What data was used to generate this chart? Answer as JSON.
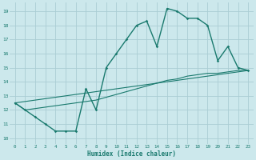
{
  "xlabel": "Humidex (Indice chaleur)",
  "bg_color": "#cce8ec",
  "line_color": "#1a7a6e",
  "grid_color": "#aacdd4",
  "xlim": [
    -0.5,
    23.5
  ],
  "ylim": [
    9.6,
    19.6
  ],
  "xticks": [
    0,
    1,
    2,
    3,
    4,
    5,
    6,
    7,
    8,
    9,
    10,
    11,
    12,
    13,
    14,
    15,
    16,
    17,
    18,
    19,
    20,
    21,
    22,
    23
  ],
  "yticks": [
    10,
    11,
    12,
    13,
    14,
    15,
    16,
    17,
    18,
    19
  ],
  "line1_x": [
    0,
    1,
    2,
    3,
    4,
    5,
    6,
    7,
    8,
    9,
    10,
    11,
    12,
    13,
    14,
    15,
    16,
    17,
    18,
    19,
    20,
    21,
    22,
    23
  ],
  "line1_y": [
    12.5,
    12.0,
    11.5,
    11.0,
    10.5,
    10.5,
    10.5,
    13.5,
    12.0,
    15.0,
    16.0,
    17.0,
    18.0,
    18.3,
    16.5,
    19.2,
    19.0,
    18.5,
    18.5,
    18.0,
    15.5,
    16.5,
    15.0,
    14.8
  ],
  "line2_x": [
    0,
    23
  ],
  "line2_y": [
    12.5,
    14.8
  ],
  "line3_x": [
    0,
    1,
    2,
    3,
    4,
    5,
    6,
    7,
    8,
    9,
    10,
    11,
    12,
    13,
    14,
    15,
    16,
    17,
    18,
    19,
    20,
    21,
    22,
    23
  ],
  "line3_y": [
    12.5,
    12.0,
    12.1,
    12.2,
    12.3,
    12.4,
    12.5,
    12.6,
    12.7,
    12.9,
    13.1,
    13.3,
    13.5,
    13.7,
    13.9,
    14.1,
    14.2,
    14.4,
    14.5,
    14.6,
    14.6,
    14.7,
    14.8,
    14.8
  ]
}
